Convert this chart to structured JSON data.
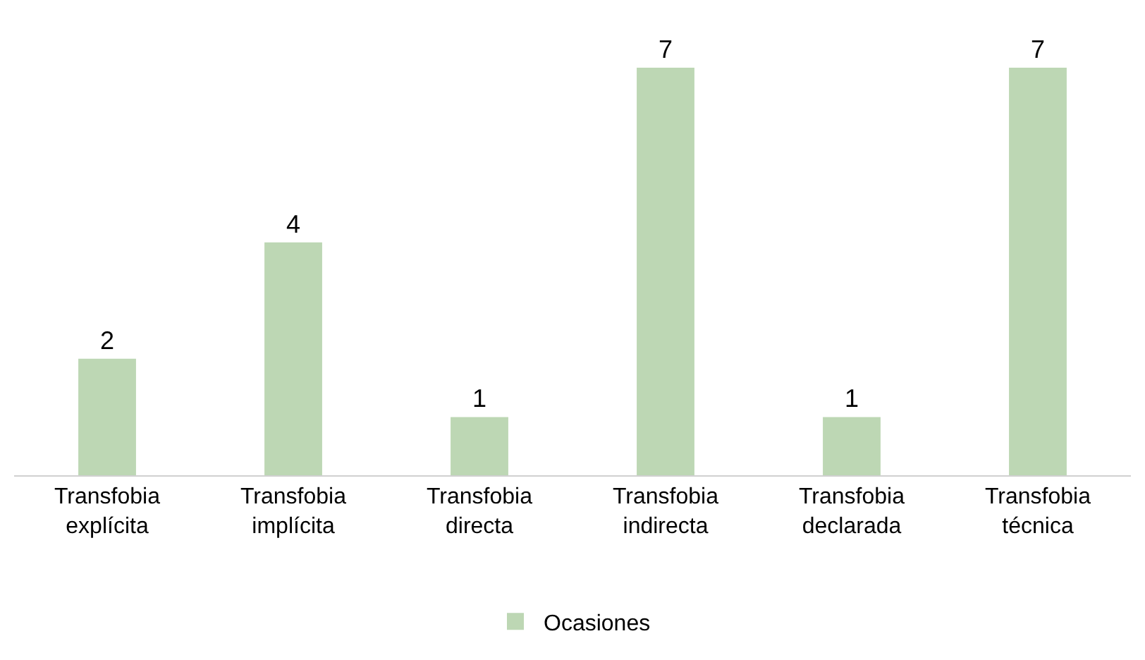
{
  "chart_data": {
    "type": "bar",
    "categories": [
      "Transfobia explícita",
      "Transfobia implícita",
      "Transfobia directa",
      "Transfobia indirecta",
      "Transfobia declarada",
      "Transfobia técnica"
    ],
    "series": [
      {
        "name": "Ocasiones",
        "color": "#bdd7b4",
        "values": [
          2,
          4,
          1,
          7,
          1,
          7
        ]
      }
    ],
    "data_labels": true,
    "legend": "bottom",
    "grid": false
  }
}
